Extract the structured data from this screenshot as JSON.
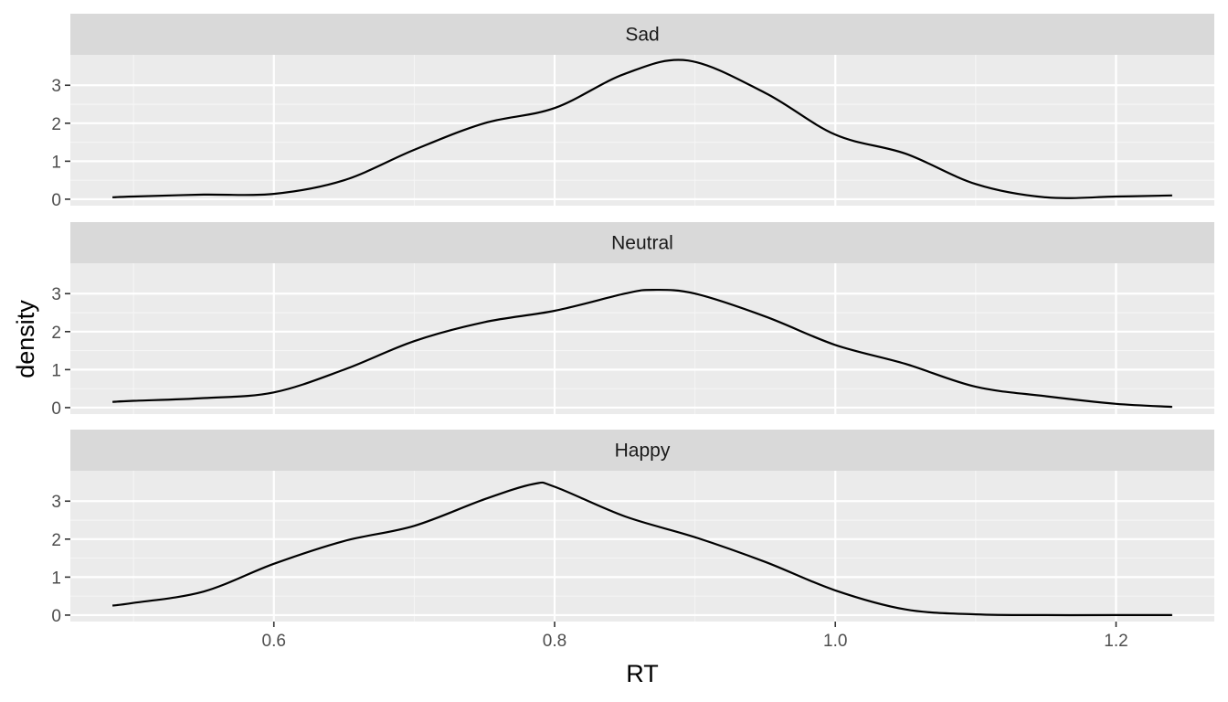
{
  "chart_data": {
    "type": "area",
    "facet_layout": "vertical",
    "xlabel": "RT",
    "ylabel": "density",
    "xlim": [
      0.455,
      1.27
    ],
    "ylim": [
      -0.17,
      3.8
    ],
    "x_ticks": [
      0.6,
      0.8,
      1.0,
      1.2
    ],
    "x_tick_labels": [
      "0.6",
      "0.8",
      "1.0",
      "1.2"
    ],
    "y_ticks": [
      0,
      1,
      2,
      3
    ],
    "y_tick_labels": [
      "0",
      "1",
      "2",
      "3"
    ],
    "grid": true,
    "panels": [
      {
        "label": "Sad",
        "x": [
          0.485,
          0.5,
          0.55,
          0.6,
          0.65,
          0.7,
          0.75,
          0.8,
          0.85,
          0.895,
          0.95,
          1.0,
          1.05,
          1.1,
          1.15,
          1.2,
          1.24
        ],
        "y": [
          0.05,
          0.07,
          0.12,
          0.14,
          0.5,
          1.3,
          2.0,
          2.4,
          3.3,
          3.65,
          2.8,
          1.7,
          1.2,
          0.4,
          0.05,
          0.07,
          0.1
        ]
      },
      {
        "label": "Neutral",
        "x": [
          0.485,
          0.5,
          0.55,
          0.6,
          0.65,
          0.7,
          0.75,
          0.8,
          0.85,
          0.87,
          0.9,
          0.95,
          1.0,
          1.05,
          1.1,
          1.15,
          1.2,
          1.24
        ],
        "y": [
          0.15,
          0.18,
          0.25,
          0.4,
          1.0,
          1.75,
          2.25,
          2.55,
          3.0,
          3.1,
          3.0,
          2.4,
          1.65,
          1.15,
          0.55,
          0.3,
          0.1,
          0.02
        ]
      },
      {
        "label": "Happy",
        "x": [
          0.485,
          0.5,
          0.55,
          0.6,
          0.65,
          0.7,
          0.75,
          0.785,
          0.8,
          0.85,
          0.9,
          0.95,
          1.0,
          1.05,
          1.1,
          1.15,
          1.2,
          1.24
        ],
        "y": [
          0.25,
          0.32,
          0.62,
          1.35,
          1.95,
          2.35,
          3.05,
          3.45,
          3.38,
          2.6,
          2.05,
          1.4,
          0.65,
          0.15,
          0.02,
          0.0,
          0.0,
          0.0
        ]
      }
    ]
  },
  "colors": {
    "panel_background": "#ebebeb",
    "strip_background": "#d9d9d9",
    "grid_major": "#ffffff",
    "grid_minor": "#f5f5f5",
    "line": "#000000",
    "tick_text": "#4d4d4d"
  }
}
